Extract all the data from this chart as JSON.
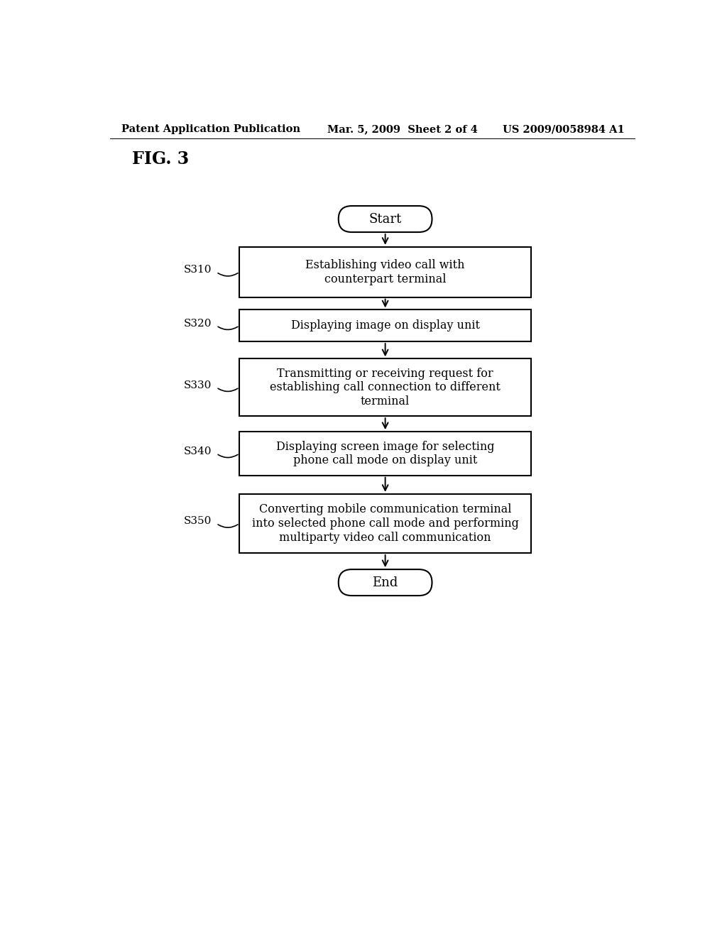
{
  "background_color": "#ffffff",
  "header_left": "Patent Application Publication",
  "header_center": "Mar. 5, 2009  Sheet 2 of 4",
  "header_right": "US 2009/0058984 A1",
  "fig_label": "FIG. 3",
  "start_label": "Start",
  "end_label": "End",
  "steps": [
    {
      "id": "S310",
      "label": "Establishing video call with\ncounterpart terminal"
    },
    {
      "id": "S320",
      "label": "Displaying image on display unit"
    },
    {
      "id": "S330",
      "label": "Transmitting or receiving request for\nestablishing call connection to different\nterminal"
    },
    {
      "id": "S340",
      "label": "Displaying screen image for selecting\nphone call mode on display unit"
    },
    {
      "id": "S350",
      "label": "Converting mobile communication terminal\ninto selected phone call mode and performing\nmultiparty video call communication"
    }
  ],
  "text_color": "#000000",
  "box_edge_color": "#000000",
  "box_face_color": "#ffffff",
  "arrow_color": "#000000",
  "header_fontsize": 10.5,
  "fig_label_fontsize": 17,
  "step_label_fontsize": 11.5,
  "step_id_fontsize": 11,
  "terminal_fontsize": 13
}
